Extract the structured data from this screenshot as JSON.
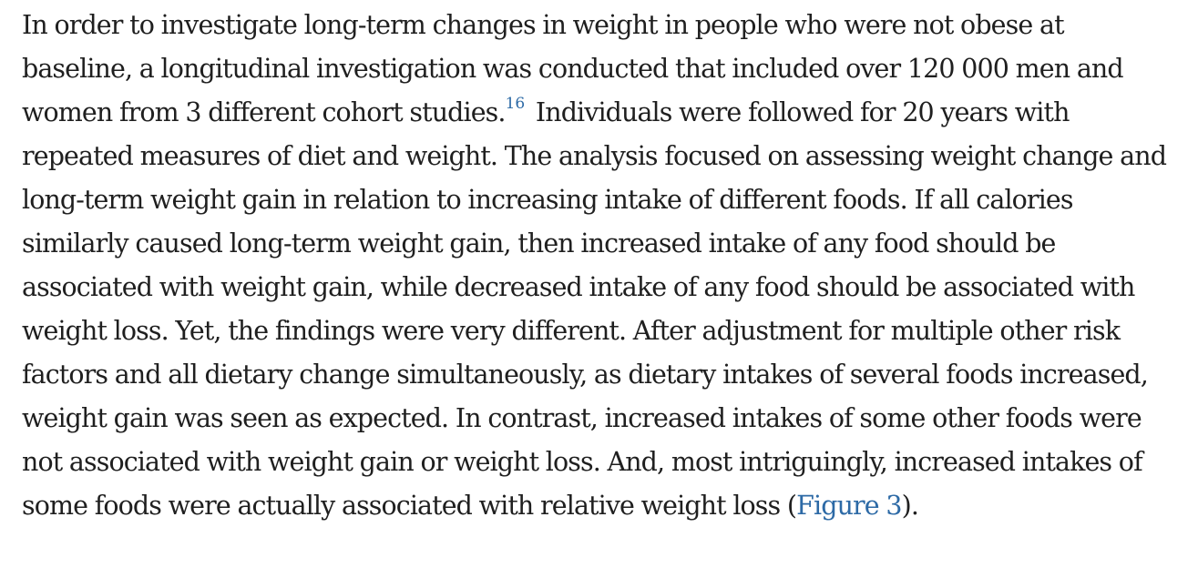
{
  "article": {
    "paragraph": {
      "text_before_ref": "In order to investigate long-term changes in weight in people who were not obese at baseline, a longitudinal investigation was conducted that included over 120 000 men and women from 3 different cohort studies.",
      "reference": "16",
      "text_after_ref": "Individuals were followed for 20 years with repeated measures of diet and weight. The analysis focused on assessing weight change and long-term weight gain in relation to increasing intake of different foods. If all calories similarly caused long-term weight gain, then increased intake of any food should be associated with weight gain, while decreased intake of any food should be associated with weight loss. Yet, the findings were very different. After adjustment for multiple other risk factors and all dietary change simultaneously, as dietary intakes of several foods increased, weight gain was seen as expected. In contrast, increased intakes of some other foods were not associated with weight gain or weight loss. And, most intriguingly, increased intakes of some foods were actually associated with relative weight loss (",
      "figure_link": "Figure 3",
      "text_end": ")."
    },
    "colors": {
      "text": "#1f1f1f",
      "link": "#2d6aa6"
    }
  }
}
